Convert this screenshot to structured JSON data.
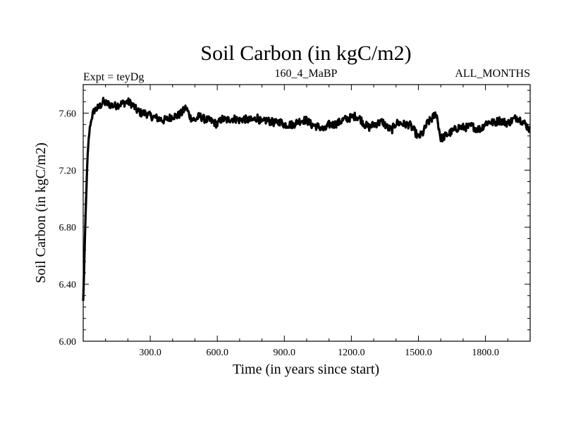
{
  "chart_data": {
    "type": "line",
    "title": "Soil Carbon (in kgC/m2)",
    "subtitle_left": "Expt = teyDg",
    "subtitle_center": "160_4_MaBP",
    "subtitle_right": "ALL_MONTHS",
    "xlabel": "Time (in years since start)",
    "ylabel": "Soil Carbon (in kgC/m2)",
    "xlim": [
      0,
      2000
    ],
    "ylim": [
      6.0,
      7.8
    ],
    "x_ticks": [
      300,
      600,
      900,
      1200,
      1500,
      1800
    ],
    "x_tick_labels": [
      "300.0",
      "600.0",
      "900.0",
      "1200.0",
      "1500.0",
      "1800.0"
    ],
    "y_ticks": [
      6.0,
      6.4,
      6.8,
      7.2,
      7.6
    ],
    "y_tick_labels": [
      "6.00",
      "6.40",
      "6.80",
      "7.20",
      "7.60"
    ],
    "grid": false,
    "line_color": "#000000",
    "series": [
      {
        "x": [
          0,
          5,
          10,
          15,
          20,
          25,
          30,
          40,
          50,
          60,
          70,
          80,
          90,
          100,
          120,
          140,
          160,
          180,
          200,
          220,
          240,
          260,
          280,
          300,
          320,
          340,
          360,
          380,
          400,
          420,
          440,
          460,
          480,
          500,
          520,
          540,
          560,
          580,
          600,
          620,
          640,
          660,
          680,
          700,
          720,
          740,
          760,
          780,
          800,
          820,
          840,
          860,
          880,
          900,
          920,
          940,
          960,
          980,
          1000,
          1020,
          1040,
          1060,
          1080,
          1100,
          1120,
          1140,
          1160,
          1180,
          1200,
          1220,
          1240,
          1260,
          1280,
          1300,
          1320,
          1340,
          1360,
          1380,
          1400,
          1420,
          1440,
          1460,
          1480,
          1500,
          1520,
          1540,
          1560,
          1580,
          1600,
          1620,
          1640,
          1660,
          1680,
          1700,
          1720,
          1740,
          1760,
          1780,
          1800,
          1820,
          1840,
          1860,
          1880,
          1900,
          1920,
          1940,
          1960,
          1980,
          2000
        ],
        "y": [
          6.28,
          6.55,
          6.85,
          7.1,
          7.3,
          7.42,
          7.5,
          7.58,
          7.62,
          7.63,
          7.64,
          7.66,
          7.68,
          7.67,
          7.66,
          7.65,
          7.66,
          7.67,
          7.68,
          7.66,
          7.62,
          7.6,
          7.6,
          7.58,
          7.57,
          7.56,
          7.55,
          7.56,
          7.58,
          7.58,
          7.6,
          7.64,
          7.57,
          7.55,
          7.58,
          7.56,
          7.55,
          7.54,
          7.52,
          7.56,
          7.55,
          7.56,
          7.56,
          7.55,
          7.56,
          7.55,
          7.55,
          7.57,
          7.53,
          7.55,
          7.54,
          7.53,
          7.54,
          7.52,
          7.52,
          7.52,
          7.54,
          7.55,
          7.55,
          7.52,
          7.51,
          7.5,
          7.48,
          7.52,
          7.52,
          7.53,
          7.55,
          7.56,
          7.57,
          7.58,
          7.56,
          7.52,
          7.5,
          7.52,
          7.53,
          7.54,
          7.5,
          7.48,
          7.53,
          7.53,
          7.52,
          7.52,
          7.48,
          7.43,
          7.46,
          7.53,
          7.56,
          7.6,
          7.42,
          7.44,
          7.46,
          7.48,
          7.5,
          7.5,
          7.5,
          7.51,
          7.49,
          7.49,
          7.53,
          7.54,
          7.53,
          7.55,
          7.54,
          7.53,
          7.55,
          7.57,
          7.55,
          7.52,
          7.48
        ]
      }
    ]
  }
}
